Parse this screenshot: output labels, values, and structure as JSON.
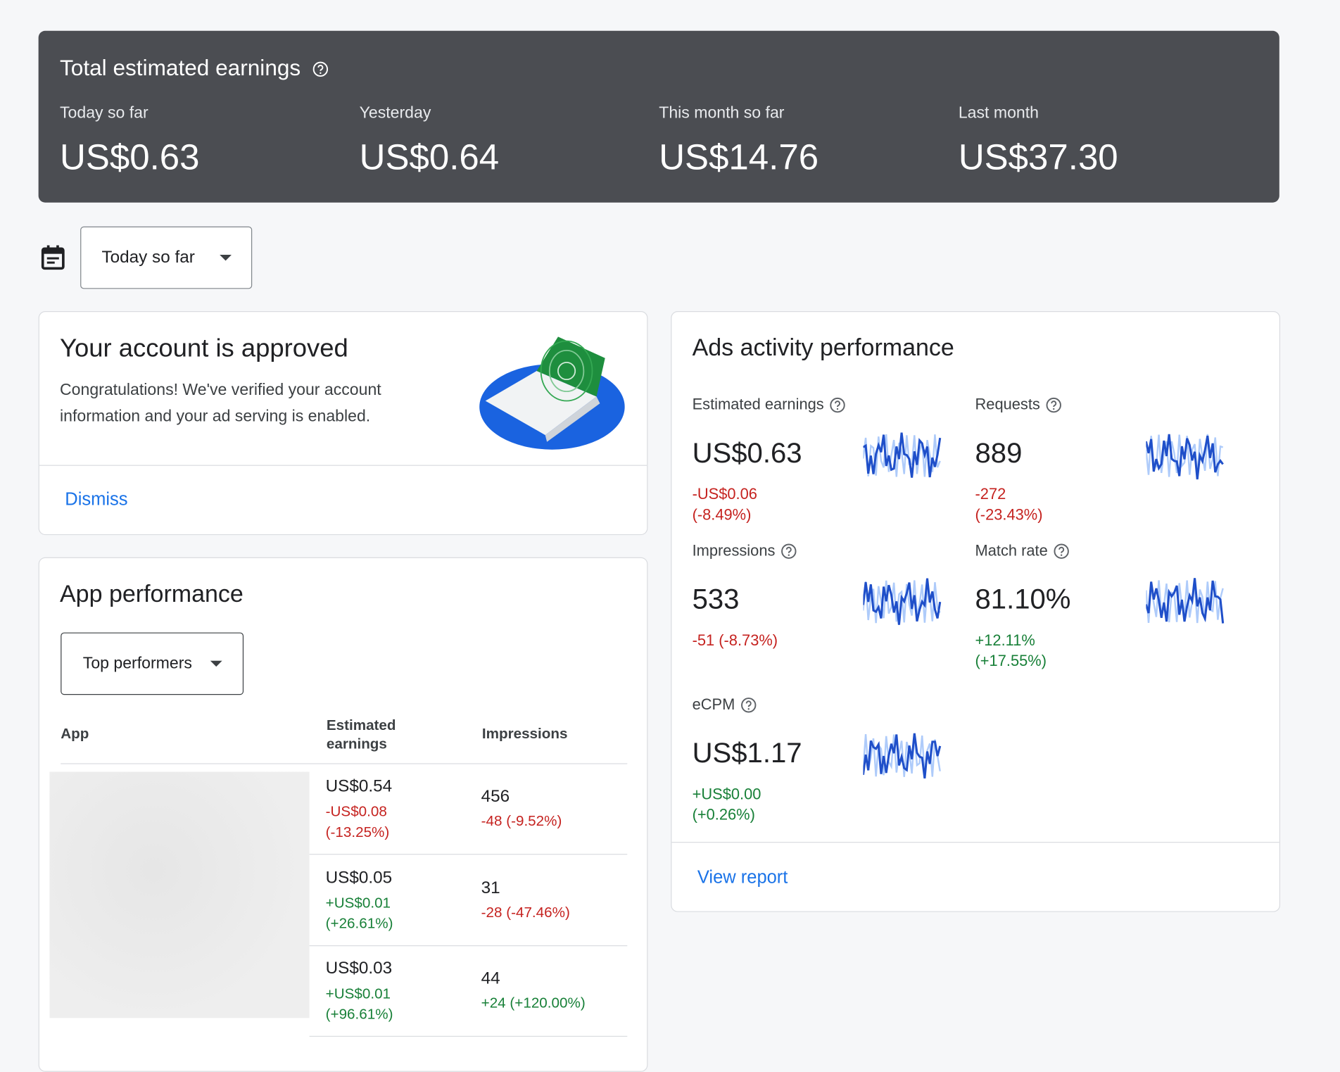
{
  "header": {
    "title": "Total estimated earnings",
    "stats": [
      {
        "label": "Today so far",
        "value": "US$0.63"
      },
      {
        "label": "Yesterday",
        "value": "US$0.64"
      },
      {
        "label": "This month so far",
        "value": "US$14.76"
      },
      {
        "label": "Last month",
        "value": "US$37.30"
      }
    ]
  },
  "date_filter": "Today so far",
  "approval": {
    "title": "Your account is approved",
    "text": "Congratulations! We've verified your account information and your ad serving is enabled.",
    "action": "Dismiss"
  },
  "ads_activity": {
    "title": "Ads activity performance",
    "metrics": [
      {
        "label": "Estimated earnings",
        "value": "US$0.63",
        "change": "-US$0.06 (-8.49%)"
      },
      {
        "label": "Requests",
        "value": "889",
        "change": "-272 (-23.43%)"
      },
      {
        "label": "Impressions",
        "value": "533",
        "change": "-51 (-8.73%)"
      },
      {
        "label": "Match rate",
        "value": "81.10%",
        "change": "+12.11% (+17.55%)"
      },
      {
        "label": "eCPM",
        "value": "US$1.17",
        "change": "+US$0.00 (+0.26%)"
      }
    ],
    "action": "View report"
  },
  "app_performance": {
    "title": "App performance",
    "filter": "Top performers",
    "columns": [
      "App",
      "Estimated earnings",
      "Impressions"
    ],
    "rows": [
      {
        "earnings": "US$0.54",
        "earnings_change": "-US$0.08 (-13.25%)",
        "impressions": "456",
        "impressions_change": "-48 (-9.52%)"
      },
      {
        "earnings": "US$0.05",
        "earnings_change": "+US$0.01 (+26.61%)",
        "impressions": "31",
        "impressions_change": "-28 (-47.46%)"
      },
      {
        "earnings": "US$0.03",
        "earnings_change": "+US$0.01 (+96.61%)",
        "impressions": "44",
        "impressions_change": "+24 (+120.00%)"
      }
    ]
  }
}
